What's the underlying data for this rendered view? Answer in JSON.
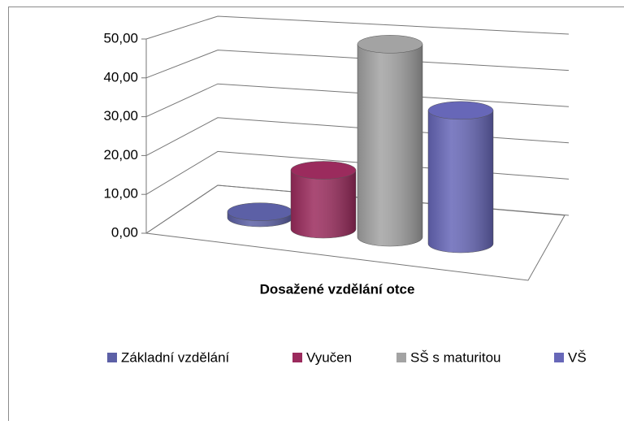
{
  "chart_data": {
    "type": "bar",
    "style": "3d-cylinder",
    "title": "Dosažené vzdělání otce",
    "categories": [
      "Základní vzdělání",
      "Vyučen",
      "SŠ s maturitou",
      "VŠ"
    ],
    "values": [
      1.5,
      14.8,
      48.5,
      33.5
    ],
    "colors": [
      "#5c60a6",
      "#9b2b5d",
      "#a3a3a3",
      "#6767b8"
    ],
    "ylim": [
      0,
      50
    ],
    "yticks": [
      {
        "value": 0,
        "label": "0,00"
      },
      {
        "value": 10,
        "label": "10,00"
      },
      {
        "value": 20,
        "label": "20,00"
      },
      {
        "value": 30,
        "label": "30,00"
      },
      {
        "value": 40,
        "label": "40,00"
      },
      {
        "value": 50,
        "label": "50,00"
      }
    ],
    "grid": true,
    "legend": "bottom"
  }
}
